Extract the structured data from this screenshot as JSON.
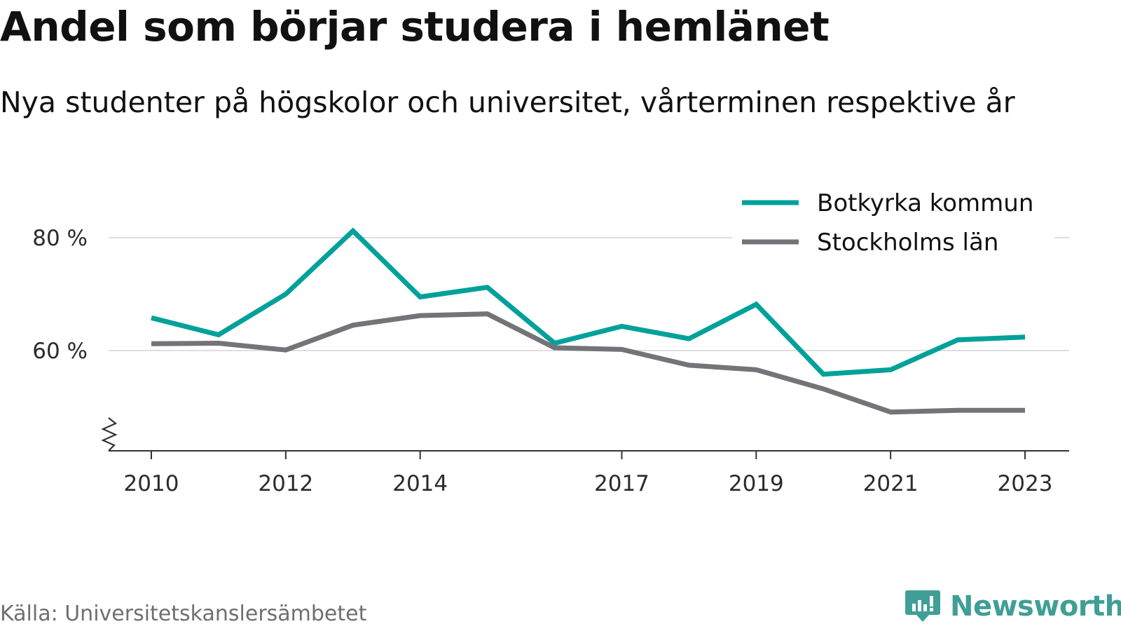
{
  "chart_data": {
    "type": "line",
    "title": "Andel som börjar studera i hemlänet",
    "subtitle": "Nya studenter på högskolor och universitet, vårterminen respektive år",
    "x": [
      2010,
      2011,
      2012,
      2013,
      2014,
      2015,
      2016,
      2017,
      2018,
      2019,
      2020,
      2021,
      2022,
      2023
    ],
    "x_tick_labels": [
      "2010",
      "2012",
      "2014",
      "2017",
      "2019",
      "2021",
      "2023"
    ],
    "x_tick_values": [
      2010,
      2012,
      2014,
      2017,
      2019,
      2021,
      2023
    ],
    "y_tick_labels": [
      "60 %",
      "80 %"
    ],
    "y_tick_values": [
      60,
      80
    ],
    "ylim": [
      42,
      84
    ],
    "y_axis_break": true,
    "grid": true,
    "legend_position": "top-right",
    "series": [
      {
        "name": "Botkyrka kommun",
        "color": "#00a19a",
        "values": [
          65.8,
          62.8,
          70.0,
          81.2,
          69.5,
          71.2,
          61.3,
          64.3,
          62.1,
          68.2,
          55.8,
          56.6,
          61.9,
          62.4
        ]
      },
      {
        "name": "Stockholms län",
        "color": "#737378",
        "values": [
          61.2,
          61.3,
          60.1,
          64.5,
          66.2,
          66.5,
          60.5,
          60.2,
          57.4,
          56.6,
          53.2,
          49.1,
          49.4,
          49.4
        ]
      }
    ],
    "source": "Källa: Universitetskanslersämbetet"
  },
  "brand": {
    "name": "Newsworthy",
    "icon": "newsworthy-logo-icon",
    "color": "#3f9f96"
  }
}
